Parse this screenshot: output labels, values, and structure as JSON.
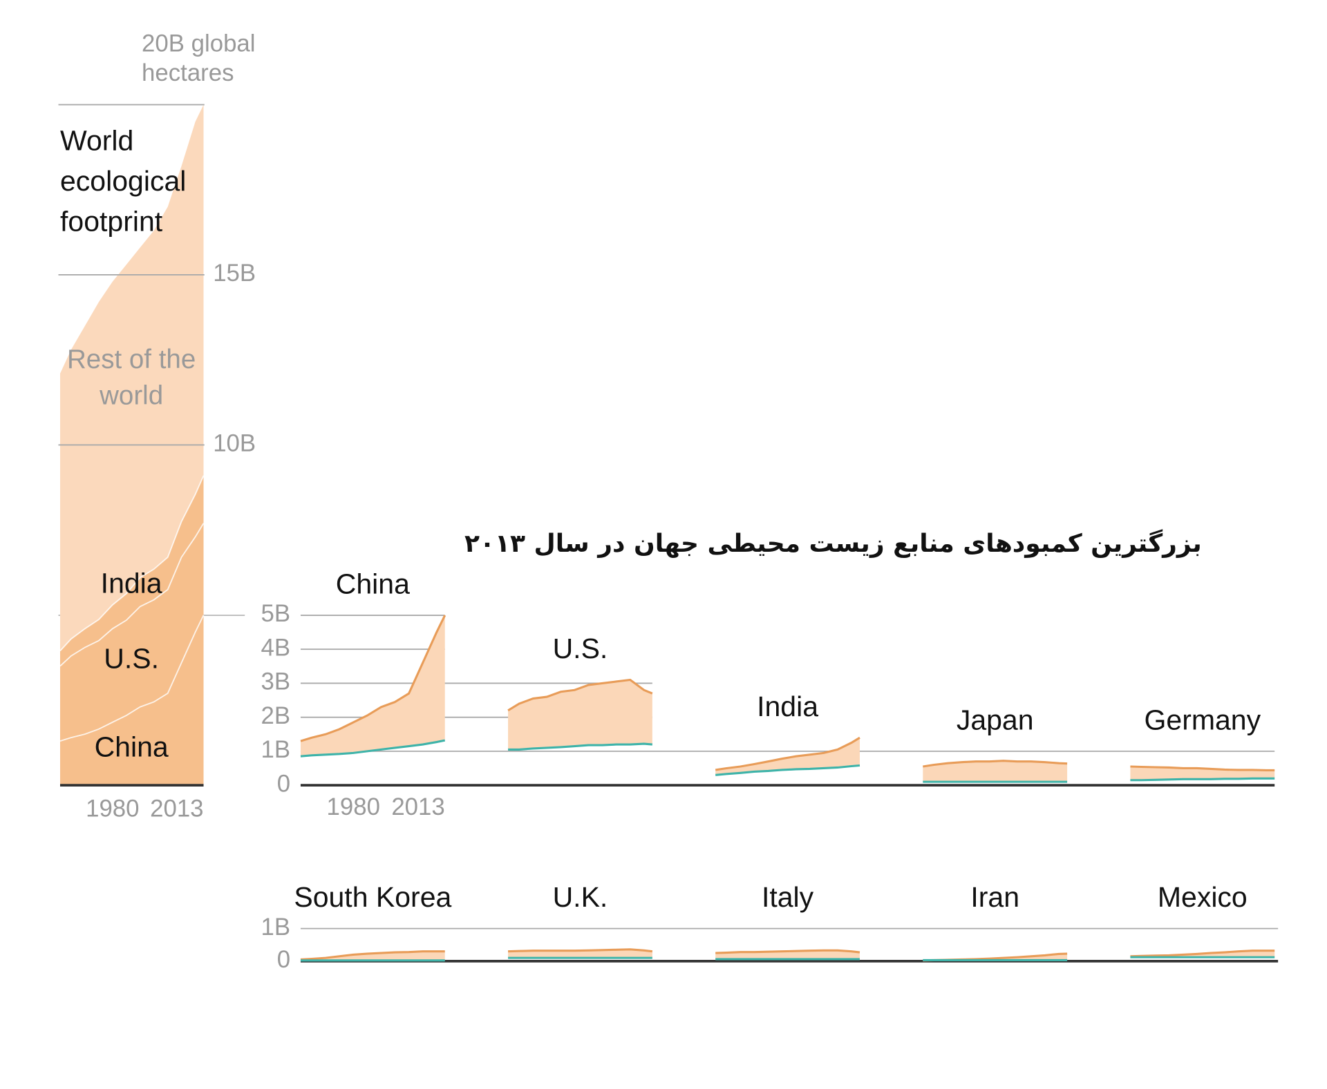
{
  "chart_data": [
    {
      "type": "stacked-area",
      "title": "World ecological footprint",
      "x": [
        1961,
        1965,
        1970,
        1975,
        1980,
        1985,
        1990,
        1995,
        2000,
        2005,
        2010,
        2013
      ],
      "xlim": [
        1961,
        2013
      ],
      "xticks": [
        1980,
        2013
      ],
      "ylim": [
        0,
        20
      ],
      "yticks": [
        {
          "value": 10,
          "label": "10B"
        },
        {
          "value": 15,
          "label": "15B"
        },
        {
          "value": 20,
          "label": "20B global hectares"
        }
      ],
      "series": [
        {
          "name": "China",
          "color": "#f6bf8c",
          "values": [
            1.3,
            1.4,
            1.5,
            1.65,
            1.85,
            2.05,
            2.3,
            2.45,
            2.7,
            3.6,
            4.5,
            5.0
          ]
        },
        {
          "name": "U.S.",
          "color": "#f6bf8c",
          "values": [
            2.2,
            2.4,
            2.55,
            2.6,
            2.75,
            2.8,
            2.95,
            3.0,
            3.05,
            3.1,
            2.8,
            2.7
          ]
        },
        {
          "name": "India",
          "color": "#f6bf8c",
          "values": [
            0.45,
            0.5,
            0.55,
            0.62,
            0.7,
            0.78,
            0.85,
            0.9,
            0.95,
            1.05,
            1.25,
            1.4
          ]
        },
        {
          "name": "Rest of the world",
          "color": "#fbd9bc",
          "values": [
            8.15,
            8.5,
            8.9,
            9.33,
            9.5,
            9.67,
            9.7,
            9.95,
            10.3,
            10.45,
            10.95,
            10.9
          ]
        }
      ]
    },
    {
      "type": "range-area",
      "title": "بزرگترین کمبودهای منابع زیست محیطی جهان در سال ۲۰۱۳",
      "x": [
        1961,
        1965,
        1970,
        1975,
        1980,
        1985,
        1990,
        1995,
        2000,
        2005,
        2010,
        2013
      ],
      "xlim": [
        1961,
        2013
      ],
      "xticks": [
        1980,
        2013
      ],
      "rows": [
        {
          "ylim": [
            0,
            5
          ],
          "yticks": [
            0,
            {
              "value": 1,
              "label": "1B"
            },
            {
              "value": 2,
              "label": "2B"
            },
            {
              "value": 3,
              "label": "3B"
            },
            {
              "value": 4,
              "label": "4B"
            },
            {
              "value": 5,
              "label": "5B"
            }
          ],
          "panels": [
            {
              "name": "China",
              "series": [
                {
                  "color": "#e89c58",
                  "values": [
                    1.3,
                    1.4,
                    1.5,
                    1.65,
                    1.85,
                    2.05,
                    2.3,
                    2.45,
                    2.7,
                    3.6,
                    4.5,
                    5.0
                  ]
                },
                {
                  "color": "#3db3a9",
                  "values": [
                    0.85,
                    0.88,
                    0.9,
                    0.92,
                    0.95,
                    1.0,
                    1.05,
                    1.1,
                    1.15,
                    1.2,
                    1.27,
                    1.32
                  ]
                }
              ]
            },
            {
              "name": "U.S.",
              "series": [
                {
                  "color": "#e89c58",
                  "values": [
                    2.2,
                    2.4,
                    2.55,
                    2.6,
                    2.75,
                    2.8,
                    2.95,
                    3.0,
                    3.05,
                    3.1,
                    2.8,
                    2.7
                  ]
                },
                {
                  "color": "#3db3a9",
                  "values": [
                    1.05,
                    1.05,
                    1.08,
                    1.1,
                    1.12,
                    1.15,
                    1.18,
                    1.18,
                    1.2,
                    1.2,
                    1.22,
                    1.2
                  ]
                }
              ]
            },
            {
              "name": "India",
              "series": [
                {
                  "color": "#e89c58",
                  "values": [
                    0.45,
                    0.5,
                    0.55,
                    0.62,
                    0.7,
                    0.78,
                    0.85,
                    0.9,
                    0.95,
                    1.05,
                    1.25,
                    1.4
                  ]
                },
                {
                  "color": "#3db3a9",
                  "values": [
                    0.3,
                    0.33,
                    0.36,
                    0.4,
                    0.42,
                    0.45,
                    0.47,
                    0.48,
                    0.5,
                    0.52,
                    0.56,
                    0.58
                  ]
                }
              ]
            },
            {
              "name": "Japan",
              "series": [
                {
                  "color": "#e89c58",
                  "values": [
                    0.55,
                    0.6,
                    0.65,
                    0.68,
                    0.7,
                    0.7,
                    0.72,
                    0.7,
                    0.7,
                    0.68,
                    0.65,
                    0.64
                  ]
                },
                {
                  "color": "#3db3a9",
                  "values": [
                    0.1,
                    0.1,
                    0.1,
                    0.1,
                    0.1,
                    0.1,
                    0.1,
                    0.1,
                    0.1,
                    0.1,
                    0.1,
                    0.1
                  ]
                }
              ]
            },
            {
              "name": "Germany",
              "series": [
                {
                  "color": "#e89c58",
                  "values": [
                    0.55,
                    0.54,
                    0.53,
                    0.52,
                    0.5,
                    0.5,
                    0.48,
                    0.46,
                    0.45,
                    0.45,
                    0.44,
                    0.44
                  ]
                },
                {
                  "color": "#3db3a9",
                  "values": [
                    0.15,
                    0.15,
                    0.16,
                    0.17,
                    0.18,
                    0.18,
                    0.18,
                    0.19,
                    0.19,
                    0.2,
                    0.2,
                    0.2
                  ]
                }
              ]
            }
          ]
        },
        {
          "ylim": [
            0,
            1
          ],
          "yticks": [
            0,
            {
              "value": 1,
              "label": "1B"
            }
          ],
          "panels": [
            {
              "name": "South Korea",
              "series": [
                {
                  "color": "#e89c58",
                  "values": [
                    0.05,
                    0.07,
                    0.1,
                    0.15,
                    0.2,
                    0.23,
                    0.25,
                    0.27,
                    0.28,
                    0.3,
                    0.3,
                    0.3
                  ]
                },
                {
                  "color": "#3db3a9",
                  "values": [
                    0.02,
                    0.02,
                    0.02,
                    0.02,
                    0.02,
                    0.02,
                    0.02,
                    0.02,
                    0.02,
                    0.02,
                    0.02,
                    0.02
                  ]
                }
              ]
            },
            {
              "name": "U.K.",
              "series": [
                {
                  "color": "#e89c58",
                  "values": [
                    0.3,
                    0.31,
                    0.32,
                    0.32,
                    0.32,
                    0.32,
                    0.33,
                    0.34,
                    0.35,
                    0.36,
                    0.33,
                    0.3
                  ]
                },
                {
                  "color": "#3db3a9",
                  "values": [
                    0.1,
                    0.1,
                    0.1,
                    0.1,
                    0.1,
                    0.1,
                    0.1,
                    0.1,
                    0.1,
                    0.1,
                    0.1,
                    0.1
                  ]
                }
              ]
            },
            {
              "name": "Italy",
              "series": [
                {
                  "color": "#e89c58",
                  "values": [
                    0.25,
                    0.26,
                    0.28,
                    0.28,
                    0.29,
                    0.3,
                    0.31,
                    0.32,
                    0.33,
                    0.33,
                    0.3,
                    0.27
                  ]
                },
                {
                  "color": "#3db3a9",
                  "values": [
                    0.06,
                    0.06,
                    0.06,
                    0.06,
                    0.06,
                    0.06,
                    0.06,
                    0.06,
                    0.06,
                    0.06,
                    0.06,
                    0.06
                  ]
                }
              ]
            },
            {
              "name": "Iran",
              "series": [
                {
                  "color": "#e89c58",
                  "values": [
                    0.02,
                    0.03,
                    0.04,
                    0.05,
                    0.06,
                    0.08,
                    0.1,
                    0.12,
                    0.15,
                    0.18,
                    0.22,
                    0.23
                  ]
                },
                {
                  "color": "#3db3a9",
                  "values": [
                    0.03,
                    0.03,
                    0.03,
                    0.03,
                    0.03,
                    0.03,
                    0.03,
                    0.03,
                    0.03,
                    0.03,
                    0.03,
                    0.03
                  ]
                }
              ]
            },
            {
              "name": "Mexico",
              "series": [
                {
                  "color": "#e89c58",
                  "values": [
                    0.15,
                    0.16,
                    0.17,
                    0.18,
                    0.2,
                    0.22,
                    0.25,
                    0.27,
                    0.3,
                    0.32,
                    0.32,
                    0.32
                  ]
                },
                {
                  "color": "#3db3a9",
                  "values": [
                    0.12,
                    0.12,
                    0.12,
                    0.12,
                    0.12,
                    0.12,
                    0.12,
                    0.12,
                    0.12,
                    0.12,
                    0.12,
                    0.12
                  ]
                }
              ]
            }
          ]
        }
      ]
    }
  ]
}
